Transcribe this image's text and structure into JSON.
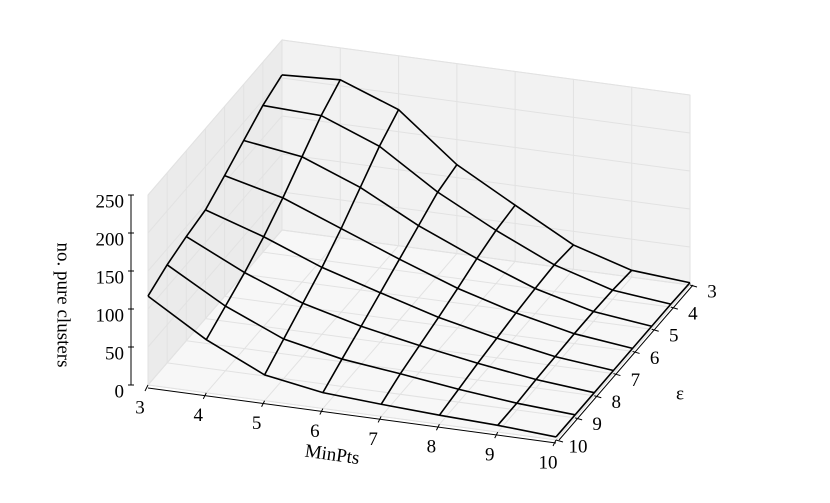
{
  "chart_data": {
    "type": "surface3d",
    "x_label": "MinPts",
    "y_label": "ε",
    "z_label": "no. pure clusters",
    "x": [
      3,
      4,
      5,
      6,
      7,
      8,
      9,
      10
    ],
    "y": [
      3,
      4,
      5,
      6,
      7,
      8,
      9,
      10
    ],
    "xlim": [
      3,
      10
    ],
    "ylim": [
      3,
      10
    ],
    "zlim": [
      0,
      250
    ],
    "xticks": [
      3,
      4,
      5,
      6,
      7,
      8,
      9,
      10
    ],
    "yticks": [
      3,
      4,
      5,
      6,
      7,
      8,
      9,
      10
    ],
    "zticks": [
      0,
      50,
      100,
      150,
      200,
      250
    ],
    "color": "#000000",
    "grid": true,
    "values": [
      [
        204,
        208,
        179,
        117,
        74,
        32,
        9,
        3
      ],
      [
        193,
        190,
        160,
        110,
        70,
        35,
        12,
        4
      ],
      [
        176,
        165,
        135,
        95,
        62,
        33,
        13,
        4
      ],
      [
        159,
        140,
        110,
        80,
        52,
        30,
        13,
        4
      ],
      [
        143,
        118,
        88,
        65,
        43,
        26,
        12,
        4
      ],
      [
        137,
        100,
        70,
        50,
        35,
        22,
        11,
        4
      ],
      [
        129,
        85,
        52,
        36,
        27,
        17,
        9,
        4
      ],
      [
        117,
        70,
        34,
        21,
        16,
        12,
        9,
        4
      ]
    ]
  }
}
